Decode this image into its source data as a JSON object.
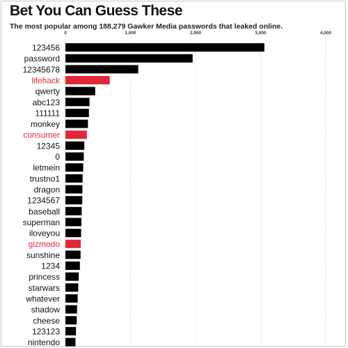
{
  "title": "Bet You Can Guess These",
  "subtitle": "The most popular among 188,279 Gawker Media passwords that leaked online.",
  "colors": {
    "bar": "#000000",
    "highlight": "#e32636",
    "text": "#111111",
    "grid": "#aaaaaa"
  },
  "chart_data": {
    "type": "bar",
    "orientation": "horizontal",
    "title": "Bet You Can Guess These",
    "subtitle": "The most popular among 188,279 Gawker Media passwords that leaked online.",
    "xlabel": "",
    "ylabel": "",
    "xlim": [
      0,
      4000
    ],
    "x_ticks": [
      0,
      1000,
      2000,
      3000,
      4000
    ],
    "x_tick_labels": [
      "0",
      "1,000",
      "2,000",
      "3,000",
      "4,000"
    ],
    "grid": true,
    "categories": [
      "123456",
      "password",
      "12345678",
      "lifehack",
      "qwerty",
      "abc123",
      "111111",
      "monkey",
      "consumer",
      "12345",
      "0",
      "letmein",
      "trustno1",
      "dragon",
      "1234567",
      "baseball",
      "superman",
      "iloveyou",
      "gizmodo",
      "sunshine",
      "1234",
      "princess",
      "starwars",
      "whatever",
      "shadow",
      "cheese",
      "123123",
      "nintendo"
    ],
    "values": [
      3057,
      1955,
      1119,
      681,
      457,
      370,
      361,
      346,
      329,
      290,
      282,
      273,
      264,
      261,
      259,
      250,
      246,
      241,
      236,
      233,
      222,
      204,
      197,
      188,
      179,
      174,
      162,
      154
    ],
    "highlighted": [
      "lifehack",
      "consumer",
      "gizmodo"
    ]
  }
}
